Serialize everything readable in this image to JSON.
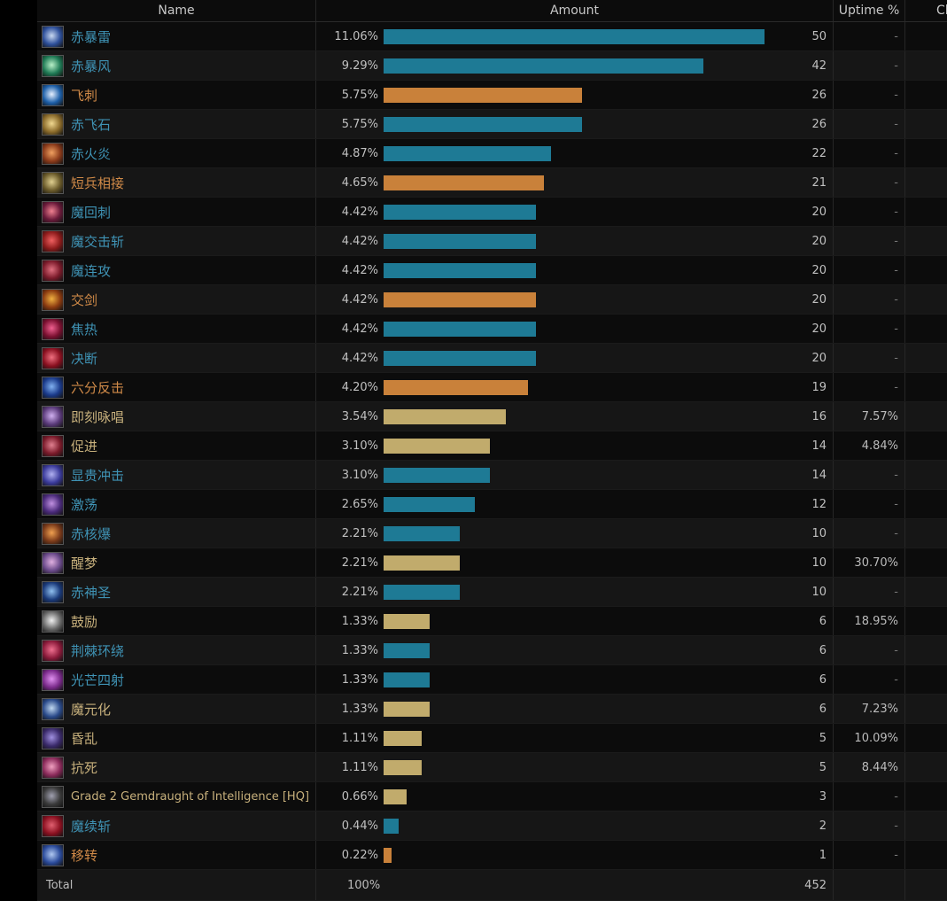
{
  "header": {
    "name": "Name",
    "amount": "Amount",
    "uptime": "Uptime %",
    "extra": "Cl"
  },
  "colors": {
    "blue": "#1e7a95",
    "orange": "#c9813a",
    "tan": "#c1ab6c",
    "name_blue": "#3f93b5",
    "name_orange": "#d08a48",
    "name_tan": "#c7b07c"
  },
  "rows": [
    {
      "name": "赤暴雷",
      "pct": "11.06%",
      "count": 50,
      "uptime": "-",
      "kind": "blue",
      "icon_name": "verthunder-icon",
      "icon": [
        "#2d4f9a",
        "#c8d8f0"
      ]
    },
    {
      "name": "赤暴风",
      "pct": "9.29%",
      "count": 42,
      "uptime": "-",
      "kind": "blue",
      "icon_name": "veraero-icon",
      "icon": [
        "#1f7a55",
        "#b8f0c8"
      ]
    },
    {
      "name": "飞刺",
      "pct": "5.75%",
      "count": 26,
      "uptime": "-",
      "kind": "orange",
      "icon_name": "jolt-icon",
      "icon": [
        "#1d5fa8",
        "#e6f0ff"
      ]
    },
    {
      "name": "赤飞石",
      "pct": "5.75%",
      "count": 26,
      "uptime": "-",
      "kind": "blue",
      "icon_name": "verstone-icon",
      "icon": [
        "#8a6a2a",
        "#f0d890"
      ]
    },
    {
      "name": "赤火炎",
      "pct": "4.87%",
      "count": 22,
      "uptime": "-",
      "kind": "blue",
      "icon_name": "verfire-icon",
      "icon": [
        "#8a3a1a",
        "#f0a060"
      ]
    },
    {
      "name": "短兵相接",
      "pct": "4.65%",
      "count": 21,
      "uptime": "-",
      "kind": "orange",
      "icon_name": "corps-a-corps-icon",
      "icon": [
        "#6a5a2a",
        "#e0d090"
      ]
    },
    {
      "name": "魔回刺",
      "pct": "4.42%",
      "count": 20,
      "uptime": "-",
      "kind": "blue",
      "icon_name": "enchanted-riposte-icon",
      "icon": [
        "#6a1a3a",
        "#f08090"
      ]
    },
    {
      "name": "魔交击斩",
      "pct": "4.42%",
      "count": 20,
      "uptime": "-",
      "kind": "blue",
      "icon_name": "enchanted-zwerchhau-icon",
      "icon": [
        "#8a1a1a",
        "#f06060"
      ]
    },
    {
      "name": "魔连攻",
      "pct": "4.42%",
      "count": 20,
      "uptime": "-",
      "kind": "blue",
      "icon_name": "enchanted-redoublement-icon",
      "icon": [
        "#7a1a2a",
        "#e07080"
      ]
    },
    {
      "name": "交剑",
      "pct": "4.42%",
      "count": 20,
      "uptime": "-",
      "kind": "orange",
      "icon_name": "fleche-icon",
      "icon": [
        "#8a3a10",
        "#f0b040"
      ]
    },
    {
      "name": "焦热",
      "pct": "4.42%",
      "count": 20,
      "uptime": "-",
      "kind": "blue",
      "icon_name": "scorch-icon",
      "icon": [
        "#7a1030",
        "#f06090"
      ]
    },
    {
      "name": "决断",
      "pct": "4.42%",
      "count": 20,
      "uptime": "-",
      "kind": "blue",
      "icon_name": "resolution-icon",
      "icon": [
        "#8a1020",
        "#f07080"
      ]
    },
    {
      "name": "六分反击",
      "pct": "4.20%",
      "count": 19,
      "uptime": "-",
      "kind": "orange",
      "icon_name": "contre-sixte-icon",
      "icon": [
        "#1a3a8a",
        "#80b0f0"
      ]
    },
    {
      "name": "即刻咏唱",
      "pct": "3.54%",
      "count": 16,
      "uptime": "7.57%",
      "kind": "tan",
      "icon_name": "swiftcast-icon",
      "icon": [
        "#5a3a7a",
        "#d0b0f0"
      ]
    },
    {
      "name": "促进",
      "pct": "3.10%",
      "count": 14,
      "uptime": "4.84%",
      "kind": "tan",
      "icon_name": "acceleration-icon",
      "icon": [
        "#7a1a2a",
        "#e08090"
      ]
    },
    {
      "name": "显贵冲击",
      "pct": "3.10%",
      "count": 14,
      "uptime": "-",
      "kind": "blue",
      "icon_name": "impact-icon",
      "icon": [
        "#3a3a9a",
        "#b0b0f0"
      ]
    },
    {
      "name": "激荡",
      "pct": "2.65%",
      "count": 12,
      "uptime": "-",
      "kind": "blue",
      "icon_name": "verflare-icon",
      "icon": [
        "#4a2a7a",
        "#c090e0"
      ]
    },
    {
      "name": "赤核爆",
      "pct": "2.21%",
      "count": 10,
      "uptime": "-",
      "kind": "blue",
      "icon_name": "verholy-icon",
      "icon": [
        "#7a3a1a",
        "#f0a050"
      ]
    },
    {
      "name": "醒梦",
      "pct": "2.21%",
      "count": 10,
      "uptime": "30.70%",
      "kind": "tan",
      "icon_name": "lucid-dreaming-icon",
      "icon": [
        "#6a4a8a",
        "#e0b0e0"
      ]
    },
    {
      "name": "赤神圣",
      "pct": "2.21%",
      "count": 10,
      "uptime": "-",
      "kind": "blue",
      "icon_name": "vercure-icon",
      "icon": [
        "#1a3a7a",
        "#90c0f0"
      ]
    },
    {
      "name": "鼓励",
      "pct": "1.33%",
      "count": 6,
      "uptime": "18.95%",
      "kind": "tan",
      "icon_name": "embolden-icon",
      "icon": [
        "#6a6a6a",
        "#f0f0f0"
      ]
    },
    {
      "name": "荆棘环绕",
      "pct": "1.33%",
      "count": 6,
      "uptime": "-",
      "kind": "blue",
      "icon_name": "verfire-aoe-icon",
      "icon": [
        "#8a1a3a",
        "#f07090"
      ]
    },
    {
      "name": "光芒四射",
      "pct": "1.33%",
      "count": 6,
      "uptime": "-",
      "kind": "blue",
      "icon_name": "radiance-icon",
      "icon": [
        "#7a2a8a",
        "#e090f0"
      ]
    },
    {
      "name": "魔元化",
      "pct": "1.33%",
      "count": 6,
      "uptime": "7.23%",
      "kind": "tan",
      "icon_name": "manafication-icon",
      "icon": [
        "#2a4a8a",
        "#c0d8f0"
      ]
    },
    {
      "name": "昏乱",
      "pct": "1.11%",
      "count": 5,
      "uptime": "10.09%",
      "kind": "tan",
      "icon_name": "addle-icon",
      "icon": [
        "#3a2a6a",
        "#a090e0"
      ]
    },
    {
      "name": "抗死",
      "pct": "1.11%",
      "count": 5,
      "uptime": "8.44%",
      "kind": "tan",
      "icon_name": "magick-barrier-icon",
      "icon": [
        "#8a2a5a",
        "#f0a0c0"
      ]
    },
    {
      "name": "Grade 2 Gemdraught of Intelligence [HQ]",
      "pct": "0.66%",
      "count": 3,
      "uptime": "-",
      "kind": "tan",
      "icon_name": "potion-icon",
      "icon": [
        "#3a3a3a",
        "#a0a0b0"
      ]
    },
    {
      "name": "魔续斩",
      "pct": "0.44%",
      "count": 2,
      "uptime": "-",
      "kind": "blue",
      "icon_name": "enchanted-moulinet-icon",
      "icon": [
        "#8a1020",
        "#e06070"
      ]
    },
    {
      "name": "移转",
      "pct": "0.22%",
      "count": 1,
      "uptime": "-",
      "kind": "orange",
      "icon_name": "displacement-icon",
      "icon": [
        "#2a4a9a",
        "#b0c8f0"
      ]
    }
  ],
  "total": {
    "label": "Total",
    "pct": "100%",
    "count": "452"
  }
}
